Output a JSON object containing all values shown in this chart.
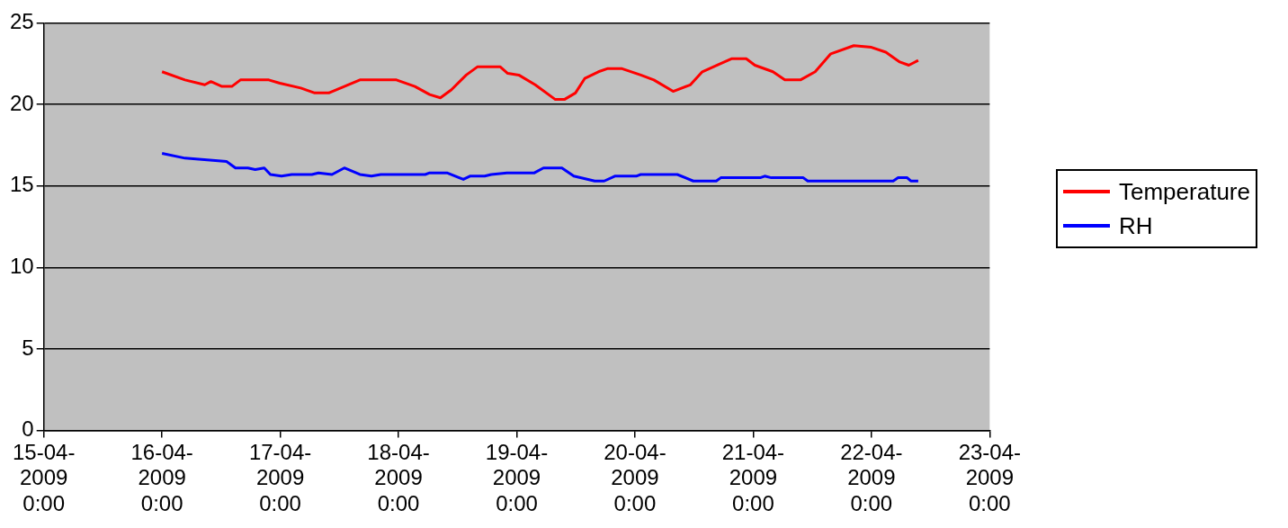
{
  "chart_data": {
    "type": "line",
    "xlim": [
      "2009-04-15T00:00",
      "2009-04-23T00:00"
    ],
    "xticks": [
      {
        "value": "2009-04-15T00:00",
        "label": "15-04-2009 0:00"
      },
      {
        "value": "2009-04-16T00:00",
        "label": "16-04-2009 0:00"
      },
      {
        "value": "2009-04-17T00:00",
        "label": "17-04-2009 0:00"
      },
      {
        "value": "2009-04-18T00:00",
        "label": "18-04-2009 0:00"
      },
      {
        "value": "2009-04-19T00:00",
        "label": "19-04-2009 0:00"
      },
      {
        "value": "2009-04-20T00:00",
        "label": "20-04-2009 0:00"
      },
      {
        "value": "2009-04-21T00:00",
        "label": "21-04-2009 0:00"
      },
      {
        "value": "2009-04-22T00:00",
        "label": "22-04-2009 0:00"
      },
      {
        "value": "2009-04-23T00:00",
        "label": "23-04-2009 0:00"
      }
    ],
    "ylim": [
      0,
      25
    ],
    "yticks": [
      0,
      5,
      10,
      15,
      20,
      25
    ],
    "grid": "y",
    "legend": "right",
    "marker": "none",
    "line_style": "solid",
    "series": [
      {
        "name": "Temperature",
        "color": "#ff0000",
        "x": [
          "2009-04-16T00:00",
          "2009-04-16T04:40",
          "2009-04-16T08:40",
          "2009-04-16T09:55",
          "2009-04-16T12:10",
          "2009-04-16T14:10",
          "2009-04-16T15:55",
          "2009-04-16T21:40",
          "2009-04-16T23:55",
          "2009-04-17T04:10",
          "2009-04-17T07:00",
          "2009-04-17T09:50",
          "2009-04-17T13:00",
          "2009-04-17T16:10",
          "2009-04-17T23:35",
          "2009-04-18T03:20",
          "2009-04-18T06:20",
          "2009-04-18T08:30",
          "2009-04-18T10:45",
          "2009-04-18T13:45",
          "2009-04-18T16:00",
          "2009-04-18T20:40",
          "2009-04-18T22:10",
          "2009-04-19T00:25",
          "2009-04-19T03:45",
          "2009-04-19T07:50",
          "2009-04-19T09:40",
          "2009-04-19T11:55",
          "2009-04-19T13:50",
          "2009-04-19T16:35",
          "2009-04-19T18:30",
          "2009-04-19T21:15",
          "2009-04-20T01:10",
          "2009-04-20T03:50",
          "2009-04-20T07:45",
          "2009-04-20T11:15",
          "2009-04-20T13:40",
          "2009-04-20T17:25",
          "2009-04-20T19:35",
          "2009-04-20T22:35",
          "2009-04-21T00:20",
          "2009-04-21T04:00",
          "2009-04-21T06:25",
          "2009-04-21T09:35",
          "2009-04-21T12:35",
          "2009-04-21T15:45",
          "2009-04-21T20:25",
          "2009-04-22T00:00",
          "2009-04-22T02:55",
          "2009-04-22T05:45",
          "2009-04-22T07:35",
          "2009-04-22T09:30"
        ],
        "values": [
          22.0,
          21.5,
          21.2,
          21.4,
          21.1,
          21.1,
          21.5,
          21.5,
          21.3,
          21.0,
          20.7,
          20.7,
          21.1,
          21.5,
          21.5,
          21.1,
          20.6,
          20.4,
          20.9,
          21.8,
          22.3,
          22.3,
          21.9,
          21.8,
          21.2,
          20.3,
          20.3,
          20.7,
          21.6,
          22.0,
          22.2,
          22.2,
          21.8,
          21.5,
          20.8,
          21.2,
          22.0,
          22.5,
          22.8,
          22.8,
          22.4,
          22.0,
          21.5,
          21.5,
          22.0,
          23.1,
          23.6,
          23.5,
          23.2,
          22.6,
          22.4,
          22.7
        ]
      },
      {
        "name": "RH",
        "color": "#0000ff",
        "x": [
          "2009-04-16T00:00",
          "2009-04-16T04:40",
          "2009-04-16T13:05",
          "2009-04-16T14:55",
          "2009-04-16T17:25",
          "2009-04-16T18:55",
          "2009-04-16T20:45",
          "2009-04-16T22:00",
          "2009-04-17T00:15",
          "2009-04-17T02:20",
          "2009-04-17T06:25",
          "2009-04-17T07:45",
          "2009-04-17T10:30",
          "2009-04-17T13:00",
          "2009-04-17T16:10",
          "2009-04-17T18:30",
          "2009-04-17T20:25",
          "2009-04-18T05:25",
          "2009-04-18T06:20",
          "2009-04-18T09:50",
          "2009-04-18T13:10",
          "2009-04-18T14:30",
          "2009-04-18T17:30",
          "2009-04-18T18:50",
          "2009-04-18T22:00",
          "2009-04-19T03:35",
          "2009-04-19T05:25",
          "2009-04-19T09:10",
          "2009-04-19T11:35",
          "2009-04-19T15:50",
          "2009-04-19T17:45",
          "2009-04-19T19:55",
          "2009-04-20T00:15",
          "2009-04-20T01:10",
          "2009-04-20T08:35",
          "2009-04-20T11:50",
          "2009-04-20T16:30",
          "2009-04-20T17:25",
          "2009-04-21T01:25",
          "2009-04-21T02:20",
          "2009-04-21T03:40",
          "2009-04-21T10:10",
          "2009-04-21T11:05",
          "2009-04-22T04:25",
          "2009-04-22T05:25",
          "2009-04-22T07:15",
          "2009-04-22T08:00",
          "2009-04-22T09:30"
        ],
        "values": [
          17.0,
          16.7,
          16.5,
          16.1,
          16.1,
          16.0,
          16.1,
          15.7,
          15.6,
          15.7,
          15.7,
          15.8,
          15.7,
          16.1,
          15.7,
          15.6,
          15.7,
          15.7,
          15.8,
          15.8,
          15.4,
          15.6,
          15.6,
          15.7,
          15.8,
          15.8,
          16.1,
          16.1,
          15.6,
          15.3,
          15.3,
          15.6,
          15.6,
          15.7,
          15.7,
          15.3,
          15.3,
          15.5,
          15.5,
          15.6,
          15.5,
          15.5,
          15.3,
          15.3,
          15.5,
          15.5,
          15.3,
          15.3
        ]
      }
    ]
  }
}
